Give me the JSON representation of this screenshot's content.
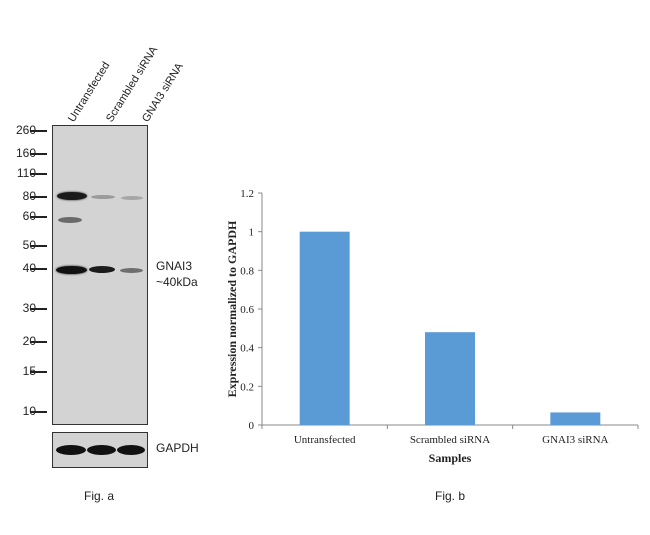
{
  "figure_a": {
    "lanes": [
      "Untransfected",
      "Scrambled siRNA",
      "GNAI3 siRNA"
    ],
    "mw_markers": [
      "260",
      "160",
      "110",
      "80",
      "60",
      "50",
      "40",
      "30",
      "20",
      "15",
      "10"
    ],
    "target_label_line1": "GNAI3",
    "target_label_line2": "~40kDa",
    "loading_label": "GAPDH",
    "caption": "Fig. a"
  },
  "figure_b": {
    "caption": "Fig. b"
  },
  "chart_data": {
    "type": "bar",
    "categories": [
      "Untransfected",
      "Scrambled siRNA",
      "GNAI3 siRNA"
    ],
    "values": [
      1.0,
      0.48,
      0.065
    ],
    "title": "",
    "xlabel": "Samples",
    "ylabel": "Expression normalized to GAPDH",
    "ylim": [
      0,
      1.2
    ],
    "yticks": [
      "0",
      "0.2",
      "0.4",
      "0.6",
      "0.8",
      "1",
      "1.2"
    ],
    "bar_color": "#5b9bd5",
    "grid": false,
    "legend": "none"
  }
}
